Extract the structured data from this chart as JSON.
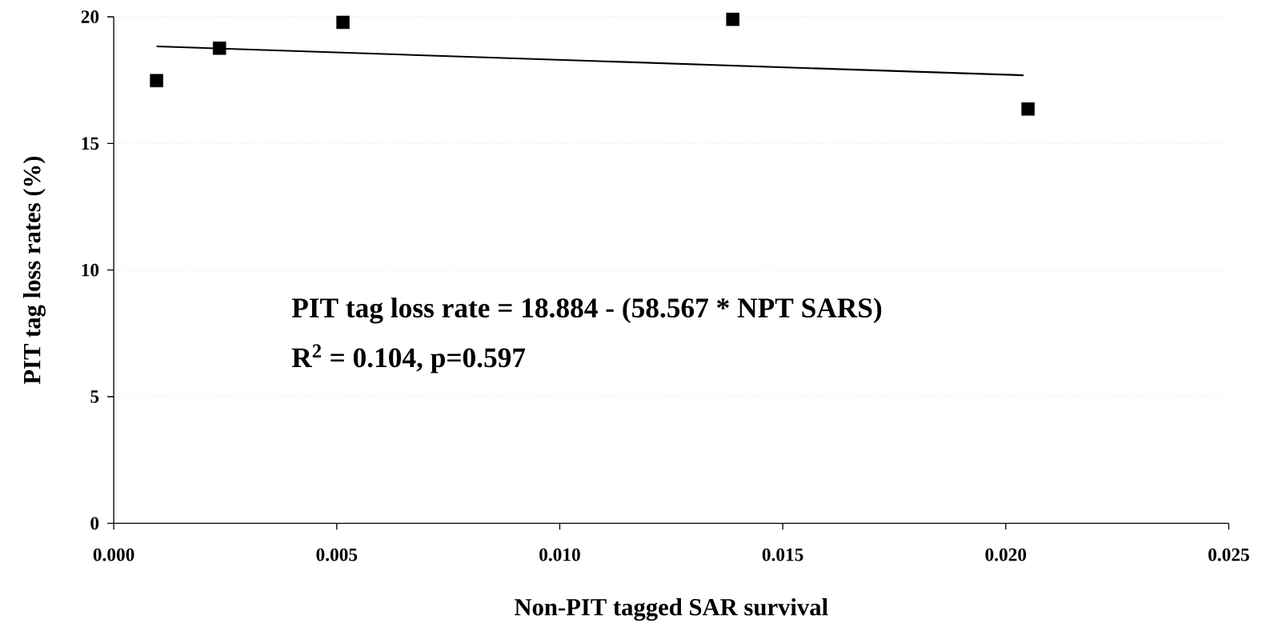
{
  "chart_data": {
    "type": "scatter",
    "xlabel": "Non-PIT tagged SAR survival",
    "ylabel": "PIT tag loss rates (%)",
    "annotations": [
      "PIT tag loss rate = 18.884 - (58.567 * NPT SARS)",
      "R$^{2}$ = 0.104, p=0.597"
    ],
    "xlim": [
      0,
      0.025
    ],
    "ylim": [
      0,
      20
    ],
    "xticks": [
      {
        "value": 0,
        "label": "0.000"
      },
      {
        "value": 0.005,
        "label": "0.005"
      },
      {
        "value": 0.01,
        "label": "0.010"
      },
      {
        "value": 0.015,
        "label": "0.015"
      },
      {
        "value": 0.02,
        "label": "0.020"
      },
      {
        "value": 0.025,
        "label": "0.025"
      }
    ],
    "yticks": [
      0,
      5,
      10,
      15,
      20
    ],
    "grid": "y",
    "marker": "square",
    "series": [
      {
        "type": "scatter",
        "color": "#000000",
        "x": [
          0.00096,
          0.00237,
          0.00514,
          0.01388,
          0.0205
        ],
        "values": [
          17.48,
          18.76,
          19.78,
          19.9,
          16.36
        ]
      },
      {
        "type": "line",
        "color": "#000000",
        "line_style": "solid",
        "marker": "none",
        "x": [
          0.00096,
          0.0204
        ],
        "values": [
          18.83,
          17.69
        ]
      }
    ]
  }
}
